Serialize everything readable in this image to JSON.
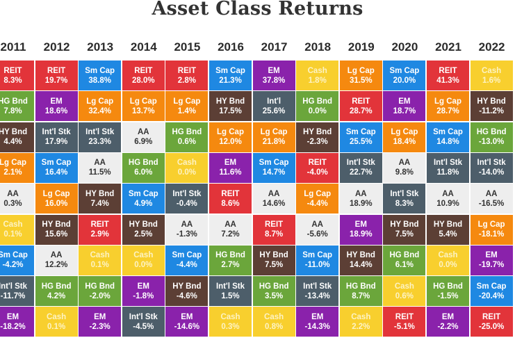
{
  "chart_data": {
    "type": "table",
    "title": "Asset Class Returns",
    "years": [
      "2011",
      "2012",
      "2013",
      "2014",
      "2015",
      "2016",
      "2017",
      "2018",
      "2019",
      "2020",
      "2021",
      "2022"
    ],
    "colors": {
      "REIT": "#e2343a",
      "Sm Cap": "#1f88e2",
      "Lg Cap": "#f5890f",
      "HG Bnd": "#6ba63b",
      "EM": "#8a22ab",
      "HY Bnd": "#5c3f35",
      "Int'l Stk": "#4d5e6a",
      "Int'l": "#4d5e6a",
      "AA": "#eeeeee",
      "Cash": "#f8cf2e"
    },
    "columns": [
      [
        [
          "REIT",
          "8.3%"
        ],
        [
          "HG Bnd",
          "7.8%"
        ],
        [
          "HY Bnd",
          "4.4%"
        ],
        [
          "Lg Cap",
          "2.1%"
        ],
        [
          "AA",
          "0.3%"
        ],
        [
          "Cash",
          "0.1%"
        ],
        [
          "Sm Cap",
          "-4.2%"
        ],
        [
          "Int'l Stk",
          "-11.7%"
        ],
        [
          "EM",
          "-18.2%"
        ]
      ],
      [
        [
          "REIT",
          "19.7%"
        ],
        [
          "EM",
          "18.6%"
        ],
        [
          "Int'l Stk",
          "17.9%"
        ],
        [
          "Sm Cap",
          "16.4%"
        ],
        [
          "Lg Cap",
          "16.0%"
        ],
        [
          "HY Bnd",
          "15.6%"
        ],
        [
          "AA",
          "12.2%"
        ],
        [
          "HG Bnd",
          "4.2%"
        ],
        [
          "Cash",
          "0.1%"
        ]
      ],
      [
        [
          "Sm Cap",
          "38.8%"
        ],
        [
          "Lg Cap",
          "32.4%"
        ],
        [
          "Int'l Stk",
          "23.3%"
        ],
        [
          "AA",
          "11.5%"
        ],
        [
          "HY Bnd",
          "7.4%"
        ],
        [
          "REIT",
          "2.9%"
        ],
        [
          "Cash",
          "0.1%"
        ],
        [
          "HG Bnd",
          "-2.0%"
        ],
        [
          "EM",
          "-2.3%"
        ]
      ],
      [
        [
          "REIT",
          "28.0%"
        ],
        [
          "Lg Cap",
          "13.7%"
        ],
        [
          "AA",
          "6.9%"
        ],
        [
          "HG Bnd",
          "6.0%"
        ],
        [
          "Sm Cap",
          "4.9%"
        ],
        [
          "HY Bnd",
          "2.5%"
        ],
        [
          "Cash",
          "0.0%"
        ],
        [
          "EM",
          "-1.8%"
        ],
        [
          "Int'l Stk",
          "-4.5%"
        ]
      ],
      [
        [
          "REIT",
          "2.8%"
        ],
        [
          "Lg Cap",
          "1.4%"
        ],
        [
          "HG Bnd",
          "0.6%"
        ],
        [
          "Cash",
          "0.0%"
        ],
        [
          "Int'l Stk",
          "-0.4%"
        ],
        [
          "AA",
          "-1.3%"
        ],
        [
          "Sm Cap",
          "-4.4%"
        ],
        [
          "HY Bnd",
          "-4.6%"
        ],
        [
          "EM",
          "-14.6%"
        ]
      ],
      [
        [
          "Sm Cap",
          "21.3%"
        ],
        [
          "HY Bnd",
          "17.5%"
        ],
        [
          "Lg Cap",
          "12.0%"
        ],
        [
          "EM",
          "11.6%"
        ],
        [
          "REIT",
          "8.6%"
        ],
        [
          "AA",
          "7.2%"
        ],
        [
          "HG Bnd",
          "2.7%"
        ],
        [
          "Int'l Stk",
          "1.5%"
        ],
        [
          "Cash",
          "0.3%"
        ]
      ],
      [
        [
          "EM",
          "37.8%"
        ],
        [
          "Int'l",
          "25.6%"
        ],
        [
          "Lg Cap",
          "21.8%"
        ],
        [
          "Sm Cap",
          "14.7%"
        ],
        [
          "AA",
          "14.6%"
        ],
        [
          "REIT",
          "8.7%"
        ],
        [
          "HY Bnd",
          "7.5%"
        ],
        [
          "HG Bnd",
          "3.5%"
        ],
        [
          "Cash",
          "0.8%"
        ]
      ],
      [
        [
          "Cash",
          "1.8%"
        ],
        [
          "HG Bnd",
          "0.0%"
        ],
        [
          "HY Bnd",
          "-2.3%"
        ],
        [
          "REIT",
          "-4.0%"
        ],
        [
          "Lg Cap",
          "-4.4%"
        ],
        [
          "AA",
          "-5.6%"
        ],
        [
          "Sm Cap",
          "-11.0%"
        ],
        [
          "Int'l Stk",
          "-13.4%"
        ],
        [
          "EM",
          "-14.3%"
        ]
      ],
      [
        [
          "Lg Cap",
          "31.5%"
        ],
        [
          "REIT",
          "28.7%"
        ],
        [
          "Sm Cap",
          "25.5%"
        ],
        [
          "Int'l Stk",
          "22.7%"
        ],
        [
          "AA",
          "18.9%"
        ],
        [
          "EM",
          "18.9%"
        ],
        [
          "HY Bnd",
          "14.4%"
        ],
        [
          "HG Bnd",
          "8.7%"
        ],
        [
          "Cash",
          "2.2%"
        ]
      ],
      [
        [
          "Sm Cap",
          "20.0%"
        ],
        [
          "EM",
          "18.7%"
        ],
        [
          "Lg Cap",
          "18.4%"
        ],
        [
          "AA",
          "9.8%"
        ],
        [
          "Int'l Stk",
          "8.3%"
        ],
        [
          "HY Bnd",
          "7.5%"
        ],
        [
          "HG Bnd",
          "6.1%"
        ],
        [
          "Cash",
          "0.6%"
        ],
        [
          "REIT",
          "-5.1%"
        ]
      ],
      [
        [
          "REIT",
          "41.3%"
        ],
        [
          "Lg Cap",
          "28.7%"
        ],
        [
          "Sm Cap",
          "14.8%"
        ],
        [
          "Int'l Stk",
          "11.8%"
        ],
        [
          "AA",
          "10.9%"
        ],
        [
          "HY Bnd",
          "5.4%"
        ],
        [
          "Cash",
          "0.0%"
        ],
        [
          "HG Bnd",
          "-1.5%"
        ],
        [
          "EM",
          "-2.2%"
        ]
      ],
      [
        [
          "Cash",
          "1.6%"
        ],
        [
          "HY Bnd",
          "-11.2%"
        ],
        [
          "HG Bnd",
          "-13.0%"
        ],
        [
          "Int'l Stk",
          "-14.0%"
        ],
        [
          "AA",
          "-16.5%"
        ],
        [
          "Lg Cap",
          "-18.1%"
        ],
        [
          "EM",
          "-19.7%"
        ],
        [
          "Sm Cap",
          "-20.4%"
        ],
        [
          "REIT",
          "-25.0%"
        ]
      ]
    ]
  }
}
